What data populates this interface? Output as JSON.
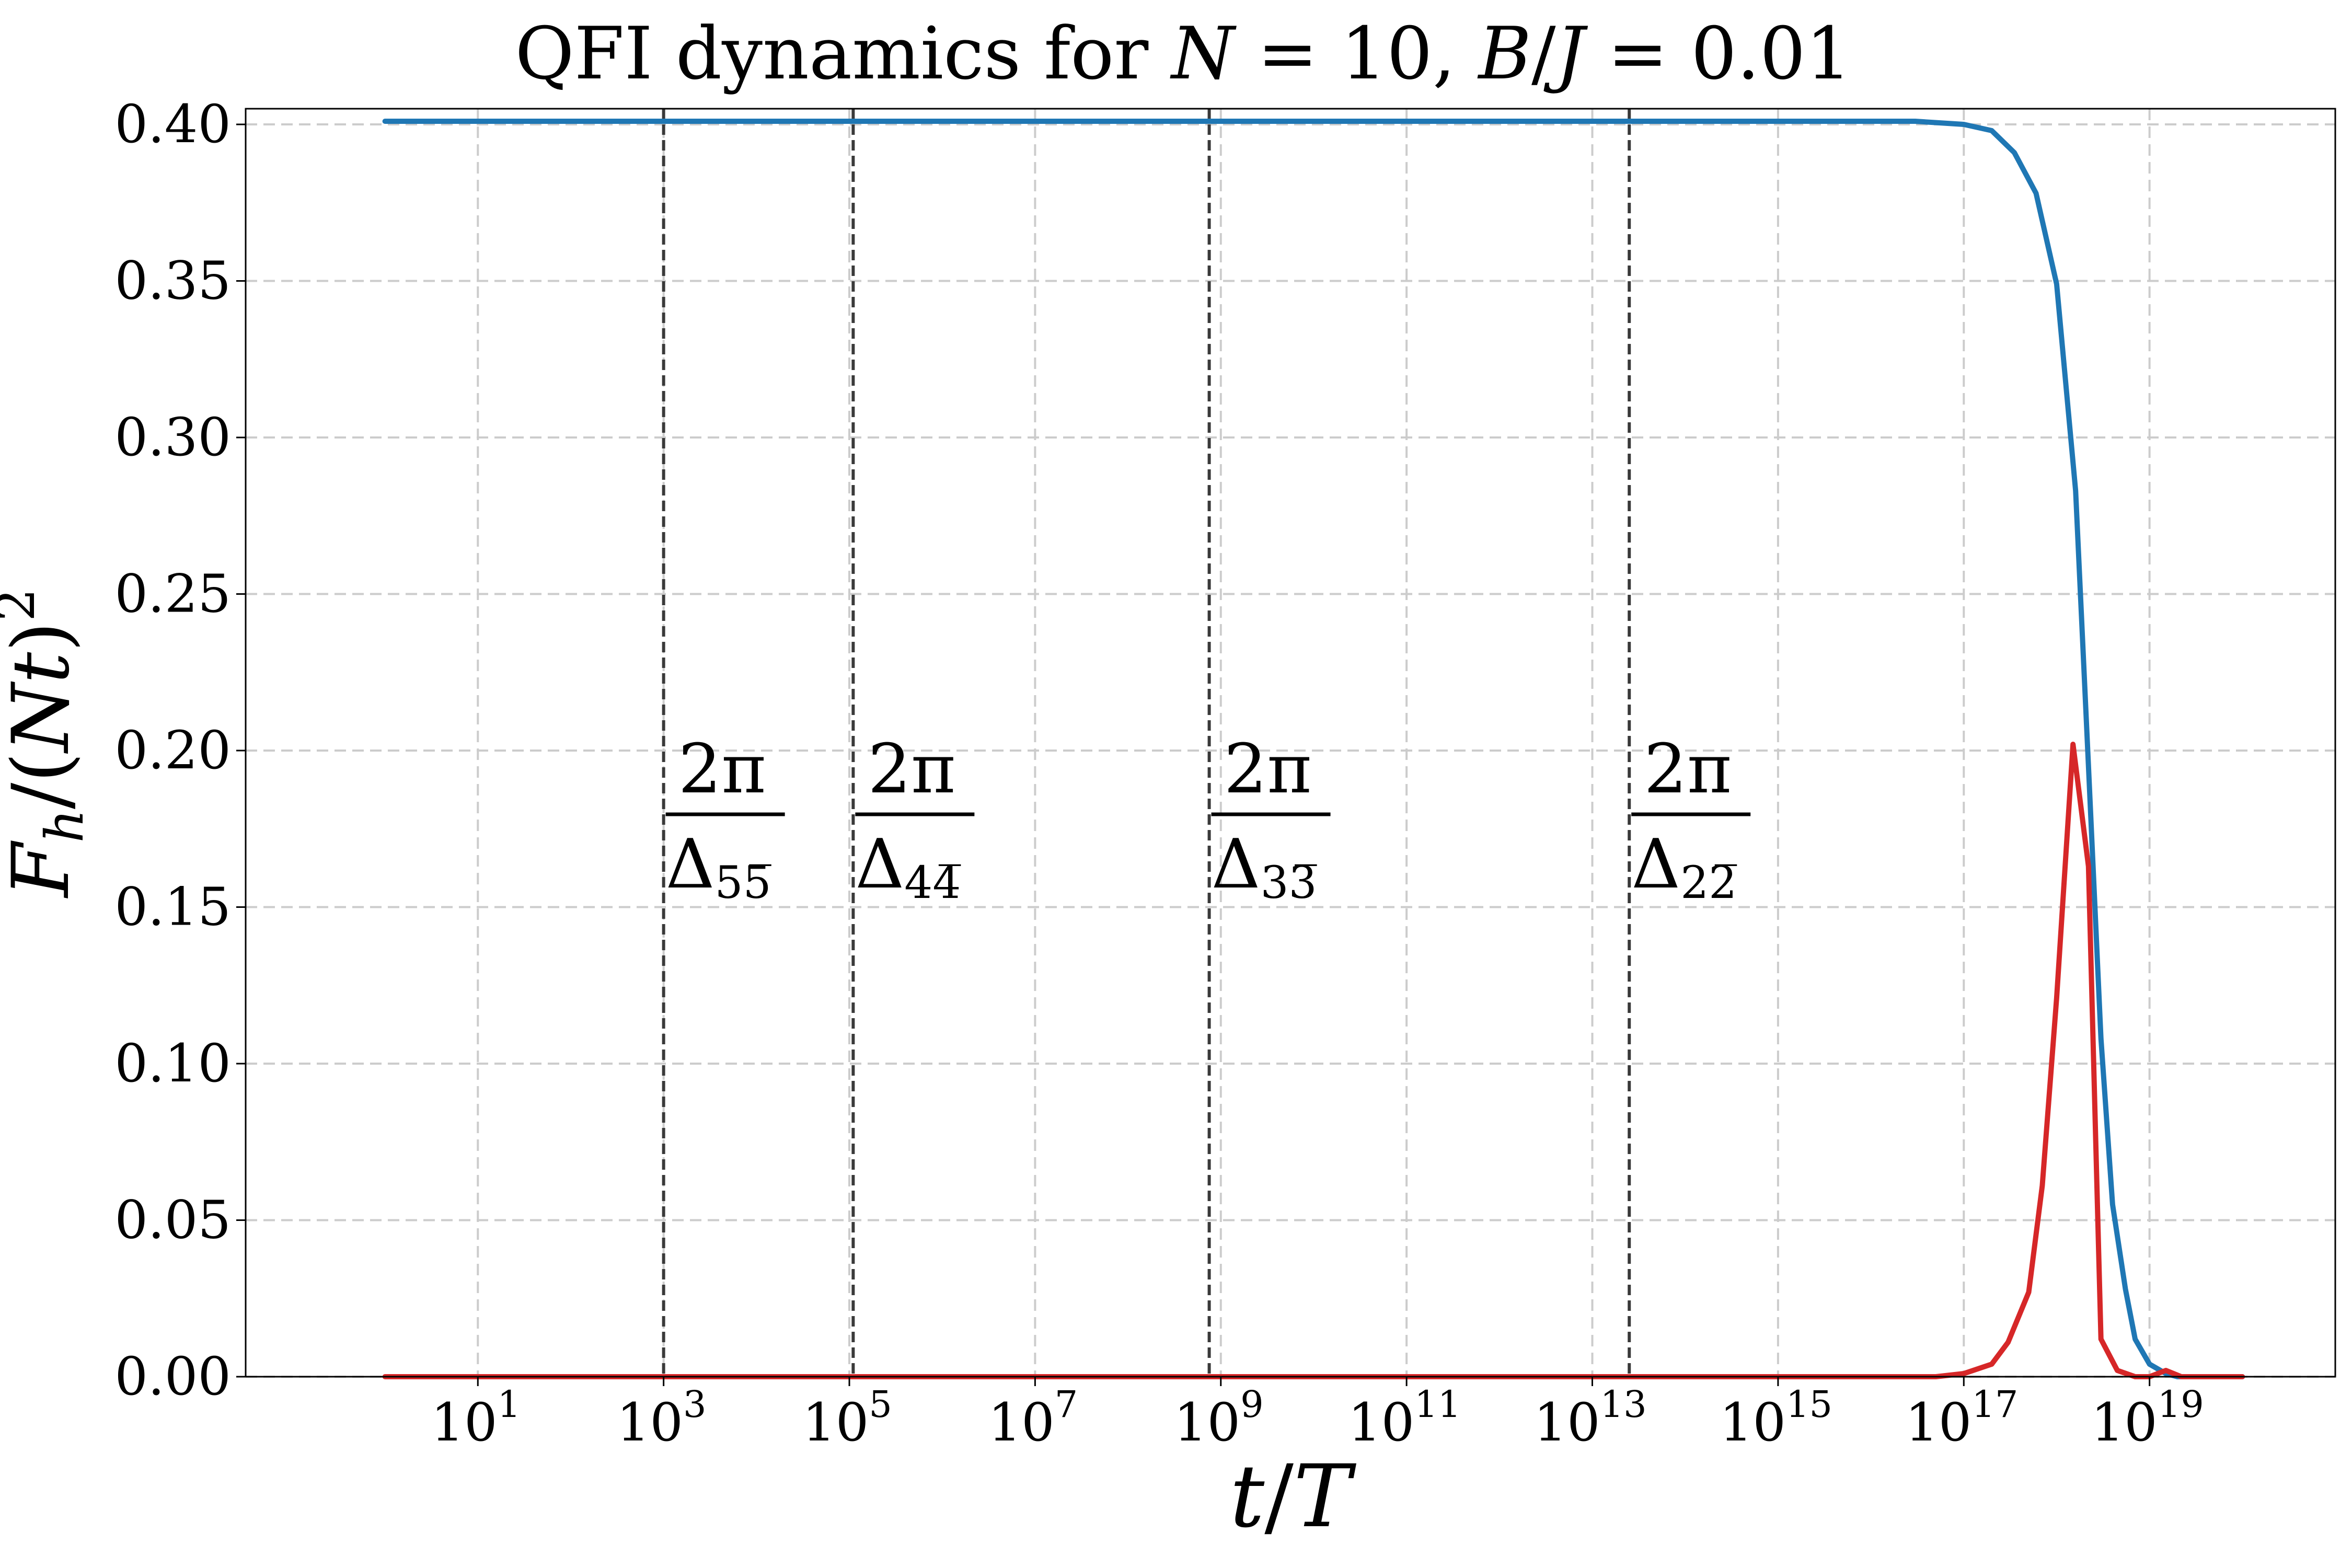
{
  "chart_data": {
    "type": "line",
    "title": {
      "text": "QFI dynamics for ",
      "N_sym": "N",
      "eq1": " = 10, ",
      "B_sym": "B",
      "slash": "/",
      "J_sym": "J",
      "eq2": " = 0.01"
    },
    "xlabel": {
      "t": "t",
      "slash": "/",
      "T": "T"
    },
    "ylabel": {
      "F": "F",
      "h": "h",
      "open": "/(",
      "Nt": "Nt",
      "close": ")",
      "sq": "2"
    },
    "xscale": "log",
    "xlim": [
      0.0316,
      1e+21
    ],
    "ylim": [
      0.0,
      0.405
    ],
    "grid": true,
    "x_ticks": [
      {
        "value": 10,
        "base": "10",
        "exp": "1"
      },
      {
        "value": 1000,
        "base": "10",
        "exp": "3"
      },
      {
        "value": 100000,
        "base": "10",
        "exp": "5"
      },
      {
        "value": 10000000,
        "base": "10",
        "exp": "7"
      },
      {
        "value": 1000000000,
        "base": "10",
        "exp": "9"
      },
      {
        "value": 100000000000,
        "base": "10",
        "exp": "11"
      },
      {
        "value": 10000000000000,
        "base": "10",
        "exp": "13"
      },
      {
        "value": 1000000000000000,
        "base": "10",
        "exp": "15"
      },
      {
        "value": 100000000000000000,
        "base": "10",
        "exp": "17"
      },
      {
        "value": 10000000000000000000,
        "base": "10",
        "exp": "19"
      }
    ],
    "y_ticks": [
      {
        "value": 0.0,
        "label": "0.00"
      },
      {
        "value": 0.05,
        "label": "0.05"
      },
      {
        "value": 0.1,
        "label": "0.10"
      },
      {
        "value": 0.15,
        "label": "0.15"
      },
      {
        "value": 0.2,
        "label": "0.20"
      },
      {
        "value": 0.25,
        "label": "0.25"
      },
      {
        "value": 0.3,
        "label": "0.30"
      },
      {
        "value": 0.35,
        "label": "0.35"
      },
      {
        "value": 0.4,
        "label": "0.40"
      }
    ],
    "series": [
      {
        "color": "#1f77b4",
        "x": [
          1,
          1e+16,
          3e+16,
          1e+17,
          2e+17,
          3.5e+17,
          6e+17,
          1e+18,
          1.6e+18,
          2.2e+18,
          3e+18,
          4e+18,
          5.5e+18,
          7e+18,
          1e+19,
          1.5e+19,
          2e+19,
          4e+19,
          1e+20
        ],
        "y": [
          0.401,
          0.401,
          0.401,
          0.4,
          0.398,
          0.391,
          0.378,
          0.349,
          0.283,
          0.195,
          0.108,
          0.055,
          0.028,
          0.012,
          0.004,
          0.001,
          0.0,
          0.0,
          0.0
        ]
      },
      {
        "color": "#d62728",
        "x": [
          1,
          1e+16,
          5e+16,
          1e+17,
          2e+17,
          3e+17,
          5e+17,
          7e+17,
          1e+18,
          1.5e+18,
          2.2e+18,
          3e+18,
          4.5e+18,
          7e+18,
          1e+19,
          1.5e+19,
          2.2e+19,
          3e+19,
          4.5e+19,
          1e+20
        ],
        "y": [
          0.0,
          0.0,
          0.0,
          0.001,
          0.004,
          0.011,
          0.027,
          0.061,
          0.121,
          0.202,
          0.163,
          0.012,
          0.002,
          0.0,
          0.0,
          0.002,
          0.0,
          0.0,
          0.0,
          0.0
        ]
      }
    ],
    "vlines": [
      {
        "x": 1000,
        "label": {
          "num": "2π",
          "delta": "Δ",
          "sub": "55̅"
        }
      },
      {
        "x": 110000,
        "label": {
          "num": "2π",
          "delta": "Δ",
          "sub": "44̅"
        }
      },
      {
        "x": 750000000,
        "label": {
          "num": "2π",
          "delta": "Δ",
          "sub": "33̅"
        }
      },
      {
        "x": 25000000000000,
        "label": {
          "num": "2π",
          "delta": "Δ",
          "sub": "22̅"
        }
      }
    ],
    "vline_label_y": 0.2,
    "colors": {
      "axis": "#000000",
      "grid": "#cccccc",
      "vline": "#3a3a3a"
    }
  }
}
